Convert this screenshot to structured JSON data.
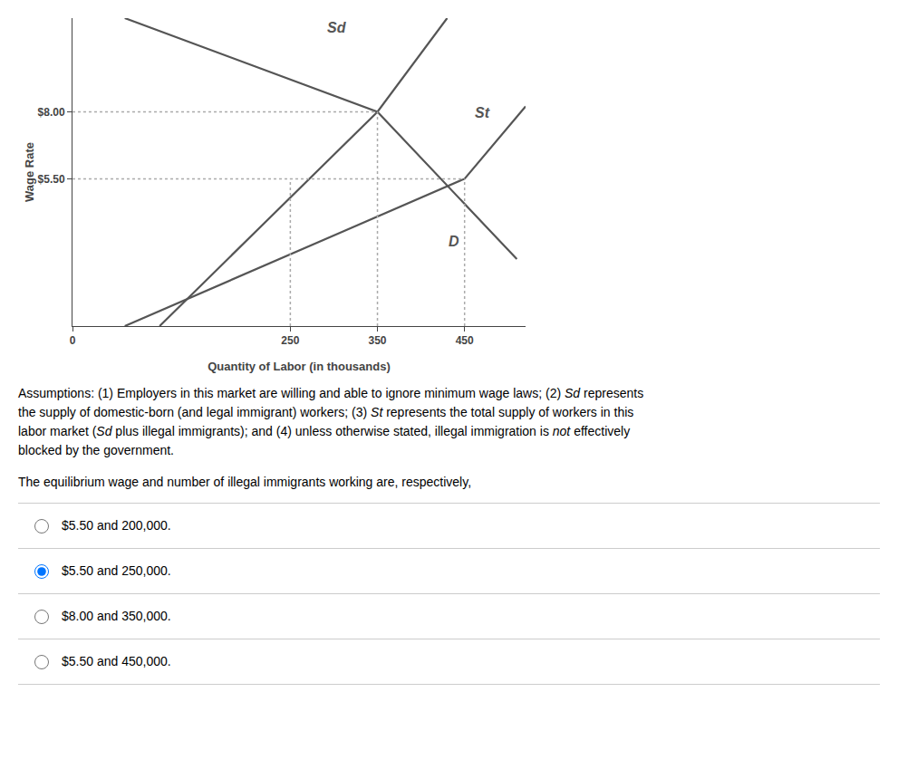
{
  "chart_data": {
    "type": "line",
    "xlabel": "Quantity of Labor (in thousands)",
    "ylabel": "Wage Rate",
    "xlim": [
      0,
      520
    ],
    "ylim": [
      0,
      11.5
    ],
    "xticks": [
      0,
      250,
      350,
      450
    ],
    "yticks": [
      {
        "value": 8.0,
        "label": "$8.00"
      },
      {
        "value": 5.5,
        "label": "$5.50"
      }
    ],
    "grid": false,
    "series": [
      {
        "name": "Sd",
        "color": "#555555",
        "line_style": "solid",
        "x": [
          100,
          350,
          430
        ],
        "values": [
          0,
          8.0,
          11.5
        ]
      },
      {
        "name": "St",
        "color": "#555555",
        "line_style": "solid",
        "x": [
          60,
          450,
          520
        ],
        "values": [
          0,
          5.5,
          8.2
        ]
      },
      {
        "name": "D",
        "color": "#555555",
        "line_style": "solid",
        "x": [
          60,
          350,
          510
        ],
        "values": [
          11.5,
          8.0,
          2.5
        ]
      },
      {
        "color": "#aaaaaa",
        "line_style": "dotted",
        "x": [
          0,
          350
        ],
        "values": [
          8.0,
          8.0
        ]
      },
      {
        "color": "#aaaaaa",
        "line_style": "dotted",
        "x": [
          350,
          350
        ],
        "values": [
          0,
          8.0
        ]
      },
      {
        "color": "#aaaaaa",
        "line_style": "dotted",
        "x": [
          0,
          450
        ],
        "values": [
          5.5,
          5.5
        ]
      },
      {
        "color": "#aaaaaa",
        "line_style": "dotted",
        "x": [
          250,
          250
        ],
        "values": [
          0,
          5.5
        ]
      },
      {
        "color": "#aaaaaa",
        "line_style": "dotted",
        "x": [
          450,
          450
        ],
        "values": [
          0,
          5.5
        ]
      }
    ],
    "annotations": [
      {
        "text": "Sd",
        "x": 290,
        "y": 10.8,
        "color": "#555555"
      },
      {
        "text": "St",
        "x": 460,
        "y": 7.6,
        "color": "#555555"
      },
      {
        "text": "D",
        "x": 430,
        "y": 2.8,
        "color": "#555555"
      }
    ]
  },
  "assumptions": [
    {
      "text": "Assumptions: (1) Employers in this market are willing and able to ignore minimum wage laws; (2) ",
      "italic": false
    },
    {
      "text": "Sd",
      "italic": true
    },
    {
      "text": " represents\nthe supply of domestic-born (and legal immigrant) workers; (3) ",
      "italic": false
    },
    {
      "text": "St",
      "italic": true
    },
    {
      "text": " represents the total supply of workers in this\nlabor market (",
      "italic": false
    },
    {
      "text": "Sd",
      "italic": true
    },
    {
      "text": " plus illegal immigrants); and (4) unless otherwise stated, illegal immigration is ",
      "italic": false
    },
    {
      "text": "not",
      "italic": true
    },
    {
      "text": " effectively\nblocked by the government.",
      "italic": false
    }
  ],
  "question": "The equilibrium wage and number of illegal immigrants working are, respectively,",
  "options": [
    {
      "text": "$5.50 and 200,000.",
      "selected": false
    },
    {
      "text": "$5.50 and 250,000.",
      "selected": true
    },
    {
      "text": "$8.00 and 350,000.",
      "selected": false
    },
    {
      "text": "$5.50 and 450,000.",
      "selected": false
    }
  ]
}
